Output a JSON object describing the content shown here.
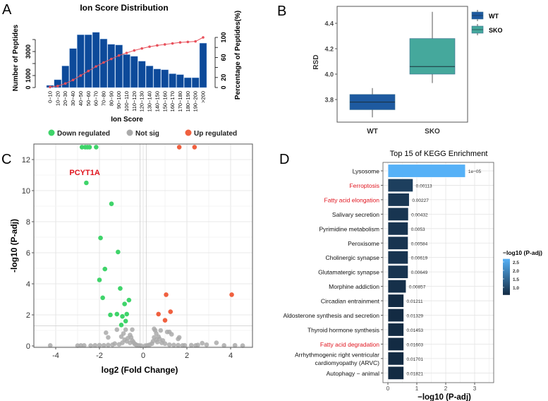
{
  "panel_labels": {
    "a": "A",
    "b": "B",
    "c": "C",
    "d": "D"
  },
  "chart_data": [
    {
      "panel": "A",
      "type": "bar",
      "title": "Ion Score Distribution",
      "xlabel": "Ion Score",
      "ylabel": "Number of Peptides",
      "y2label": "Percentage of Peptides(%)",
      "categories": [
        "0−10",
        "10−20",
        "20−30",
        "30−40",
        "40−50",
        "50−60",
        "60−70",
        "70−80",
        "80−90",
        "90−100",
        "100−110",
        "110−120",
        "120−130",
        "130−140",
        "140−150",
        "150−160",
        "160−170",
        "170−180",
        "180−190",
        "190−200",
        ">200"
      ],
      "values": [
        180,
        650,
        1800,
        3250,
        4400,
        4400,
        4600,
        4050,
        3600,
        3550,
        2750,
        2600,
        2200,
        1800,
        1550,
        1480,
        1150,
        1080,
        820,
        820,
        3700
      ],
      "cumulative_percent": [
        1,
        3,
        8,
        15,
        24,
        33,
        42,
        50,
        57,
        64,
        69,
        74,
        78,
        81.5,
        84,
        86,
        88,
        90,
        91,
        92,
        100
      ],
      "ylim": [
        0,
        4600
      ],
      "yticks": [
        0,
        1000,
        2000,
        3000,
        4000
      ],
      "ytick_labels": [
        "0",
        "1000",
        "",
        "3000",
        ""
      ],
      "y2lim": [
        0,
        100
      ],
      "y2ticks": [
        0,
        20,
        40,
        60,
        80,
        100
      ],
      "y2tick_labels": [
        "0",
        "20",
        "",
        "60",
        "",
        "100"
      ],
      "bar_color": "#0D4A9A",
      "line_color": "#E8505B"
    },
    {
      "panel": "B",
      "type": "box",
      "ylabel": "RSD",
      "categories": [
        "WT",
        "SKO"
      ],
      "boxes": [
        {
          "name": "WT",
          "min": 3.66,
          "q1": 3.72,
          "median": 3.78,
          "q3": 3.84,
          "max": 3.89,
          "color": "#1E5AA0"
        },
        {
          "name": "SKO",
          "min": 3.93,
          "q1": 4.0,
          "median": 4.06,
          "q3": 4.28,
          "max": 4.49,
          "color": "#45A89C"
        }
      ],
      "yticks": [
        3.8,
        4.0,
        4.2,
        4.4
      ],
      "ytick_labels": [
        "3.8",
        "4.0",
        "4.2",
        "4.4"
      ],
      "legend": [
        "WT",
        "SKO"
      ],
      "legend_position": "right"
    },
    {
      "panel": "C",
      "type": "scatter",
      "xlabel": "log2 (Fold Change)",
      "ylabel": "-log10 (P-adj)",
      "xlim": [
        -5,
        5
      ],
      "ylim": [
        -0.1,
        12.9
      ],
      "xticks": [
        -4,
        -2,
        0,
        2,
        4
      ],
      "xtick_labels": [
        "-4",
        "-2",
        "0",
        "2",
        "4"
      ],
      "yticks": [
        0,
        2,
        4,
        6,
        8,
        10,
        12
      ],
      "ytick_labels": [
        "0",
        "2",
        "4",
        "6",
        "8",
        "10",
        "12"
      ],
      "threshold_y": 1.3,
      "threshold_x": [
        -0.1,
        0.1
      ],
      "grid": true,
      "legend_position": "top",
      "annotation": {
        "text": "PCYT1A",
        "x": -2.6,
        "y": 10.5,
        "color": "#E0141E"
      },
      "series": [
        {
          "name": "Down regulated",
          "color": "#3FD46A",
          "points": [
            [
              -2.8,
              12.8
            ],
            [
              -2.65,
              12.8
            ],
            [
              -2.55,
              12.8
            ],
            [
              -2.45,
              12.8
            ],
            [
              -2.15,
              12.8
            ],
            [
              -2.6,
              10.5
            ],
            [
              -1.45,
              9.15
            ],
            [
              -1.95,
              6.95
            ],
            [
              -1.15,
              6.05
            ],
            [
              -1.75,
              4.95
            ],
            [
              -2.0,
              4.25
            ],
            [
              -1.05,
              3.7
            ],
            [
              -1.85,
              3.1
            ],
            [
              -0.65,
              2.95
            ],
            [
              -0.85,
              2.7
            ],
            [
              -1.5,
              2.0
            ],
            [
              -1.2,
              2.05
            ],
            [
              -0.75,
              2.05
            ],
            [
              -0.95,
              1.9
            ],
            [
              -0.8,
              1.6
            ],
            [
              -1.0,
              1.35
            ]
          ]
        },
        {
          "name": "Not sig",
          "color": "#AAAAAA",
          "points": [
            [
              -4.25,
              0.03
            ],
            [
              -2.85,
              0.03
            ],
            [
              -2.7,
              0.03
            ],
            [
              -2.4,
              0.02
            ],
            [
              -2.2,
              0.04
            ],
            [
              -2.0,
              0.05
            ],
            [
              -1.8,
              0.04
            ],
            [
              -1.6,
              0.06
            ],
            [
              -1.4,
              0.08
            ],
            [
              -1.3,
              0.15
            ],
            [
              -1.7,
              0.85
            ],
            [
              -1.6,
              0.55
            ],
            [
              -1.2,
              1.05
            ],
            [
              -1.0,
              0.6
            ],
            [
              -0.9,
              0.8
            ],
            [
              -0.8,
              1.05
            ],
            [
              -0.85,
              0.4
            ],
            [
              -0.75,
              0.3
            ],
            [
              -0.7,
              0.5
            ],
            [
              -0.6,
              0.7
            ],
            [
              -0.55,
              0.55
            ],
            [
              -0.5,
              1.05
            ],
            [
              -0.6,
              0.2
            ],
            [
              -0.5,
              0.35
            ],
            [
              -0.45,
              0.25
            ],
            [
              -0.4,
              0.15
            ],
            [
              -0.35,
              0.1
            ],
            [
              -0.3,
              0.06
            ],
            [
              -0.2,
              0.03
            ],
            [
              -0.1,
              0.02
            ],
            [
              0.1,
              0.02
            ],
            [
              0.2,
              0.04
            ],
            [
              0.3,
              0.08
            ],
            [
              0.4,
              0.15
            ],
            [
              0.45,
              0.3
            ],
            [
              0.5,
              0.55
            ],
            [
              0.5,
              1.1
            ],
            [
              0.55,
              1.0
            ],
            [
              0.6,
              0.8
            ],
            [
              0.6,
              0.4
            ],
            [
              0.65,
              0.25
            ],
            [
              0.7,
              0.6
            ],
            [
              0.75,
              0.45
            ],
            [
              0.8,
              1.0
            ],
            [
              0.9,
              0.35
            ],
            [
              1.1,
              0.9
            ],
            [
              1.2,
              0.9
            ],
            [
              1.3,
              0.75
            ],
            [
              1.6,
              0.45
            ],
            [
              1.65,
              0.55
            ],
            [
              1.0,
              0.15
            ],
            [
              1.2,
              0.08
            ],
            [
              1.4,
              0.06
            ],
            [
              1.6,
              0.05
            ],
            [
              1.9,
              0.04
            ],
            [
              2.2,
              0.05
            ],
            [
              2.5,
              0.06
            ],
            [
              2.7,
              0.18
            ],
            [
              2.9,
              0.08
            ],
            [
              3.35,
              0.2
            ],
            [
              3.7,
              0.03
            ],
            [
              4.2,
              0.04
            ],
            [
              4.55,
              0.02
            ],
            [
              -3.0,
              0.02
            ],
            [
              -1.1,
              0.1
            ],
            [
              -0.95,
              0.2
            ],
            [
              0.85,
              0.2
            ],
            [
              1.8,
              0.03
            ],
            [
              2.4,
              0.03
            ]
          ]
        },
        {
          "name": "Up regulated",
          "color": "#F0603F",
          "points": [
            [
              1.65,
              12.8
            ],
            [
              2.35,
              12.8
            ],
            [
              1.05,
              3.3
            ],
            [
              4.05,
              3.3
            ],
            [
              1.25,
              2.2
            ],
            [
              0.7,
              2.05
            ],
            [
              1.0,
              1.65
            ]
          ]
        }
      ]
    },
    {
      "panel": "D",
      "type": "bar",
      "orientation": "horizontal",
      "title": "Top 15 of KEGG Enrichment",
      "xlabel": "−log10 (P-adj)",
      "xlim": [
        0,
        3.5
      ],
      "xticks": [
        0,
        1,
        2,
        3
      ],
      "xtick_labels": [
        "0",
        "1",
        "2",
        "3"
      ],
      "categories": [
        "Lysosome",
        "Ferroptosis",
        "Fatty acid elongation",
        "Salivary secretion",
        "Pyrimidine metabolism",
        "Peroxisome",
        "Cholinergic synapse",
        "Glutamatergic synapse",
        "Morphine addiction",
        "Circadian entrainment",
        "Aldosterone synthesis and secretion",
        "Thyroid hormone synthesis",
        "Fatty acid degradation",
        "Arrhythmogenic right ventricular cardiomyopathy (ARVC)",
        "Autophagy − animal"
      ],
      "category_lines": [
        [
          "Lysosome"
        ],
        [
          "Ferroptosis"
        ],
        [
          "Fatty acid elongation"
        ],
        [
          "Salivary secretion"
        ],
        [
          "Pyrimidine metabolism"
        ],
        [
          "Peroxisome"
        ],
        [
          "Cholinergic synapse"
        ],
        [
          "Glutamatergic synapse"
        ],
        [
          "Morphine addiction"
        ],
        [
          "Circadian entrainment"
        ],
        [
          "Aldosterone synthesis and secretion"
        ],
        [
          "Thyroid hormone synthesis"
        ],
        [
          "Fatty acid degradation"
        ],
        [
          "Arrhythmogenic right ventricular",
          "cardiomyopathy (ARVC)"
        ],
        [
          "Autophagy − animal"
        ]
      ],
      "highlighted": [
        false,
        true,
        true,
        false,
        false,
        false,
        false,
        false,
        false,
        false,
        false,
        false,
        true,
        false,
        false
      ],
      "highlight_color": "#E0141E",
      "values": [
        2.68,
        0.87,
        0.74,
        0.71,
        0.7,
        0.7,
        0.7,
        0.7,
        0.63,
        0.55,
        0.55,
        0.55,
        0.55,
        0.55,
        0.55
      ],
      "value_labels": [
        "1e−05",
        "0.00113",
        "0.00227",
        "0.00432",
        "0.0053",
        "0.00584",
        "0.00619",
        "0.00649",
        "0.00857",
        "0.01211",
        "0.01329",
        "0.01453",
        "0.01603",
        "0.01701",
        "0.01821"
      ],
      "colorbar": {
        "title": "−log10 (P-adj)",
        "range": [
          0.55,
          2.68
        ],
        "ticks": [
          1.0,
          1.5,
          2.0,
          2.5
        ],
        "tick_labels": [
          "1.0",
          "1.5",
          "2.0",
          "2.5"
        ],
        "low_color": "#132B43",
        "high_color": "#56B1F7"
      },
      "grid": true
    }
  ]
}
